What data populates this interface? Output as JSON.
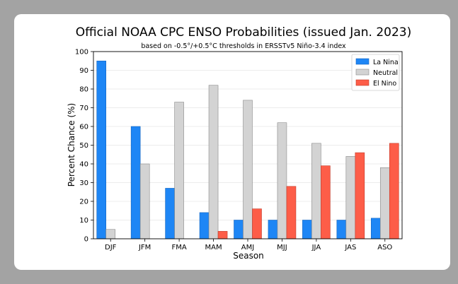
{
  "colors": {
    "background": "#a3a3a3",
    "card": "#ffffff",
    "la_nina": "#1e86f5",
    "neutral": "#d3d3d3",
    "el_nino": "#fd5d48",
    "bar_edge_la_nina": "#1565c0",
    "bar_edge_neutral": "#8a8a8a",
    "bar_edge_el_nino": "#c23a28"
  },
  "chart_data": {
    "type": "bar",
    "title": "Official NOAA CPC ENSO Probabilities (issued Jan. 2023)",
    "subtitle": "based on -0.5°/+0.5°C thresholds in ERSSTv5 Niño-3.4 index",
    "xlabel": "Season",
    "ylabel": "Percent Chance (%)",
    "ylim": [
      0,
      100
    ],
    "yticks": [
      0,
      10,
      20,
      30,
      40,
      50,
      60,
      70,
      80,
      90,
      100
    ],
    "grid": true,
    "legend_position": "top-right",
    "categories": [
      "DJF",
      "JFM",
      "FMA",
      "MAM",
      "AMJ",
      "MJJ",
      "JJA",
      "JAS",
      "ASO"
    ],
    "series": [
      {
        "name": "La Nina",
        "color_key": "la_nina",
        "values": [
          95,
          60,
          27,
          14,
          10,
          10,
          10,
          10,
          11
        ]
      },
      {
        "name": "Neutral",
        "color_key": "neutral",
        "values": [
          5,
          40,
          73,
          82,
          74,
          62,
          51,
          44,
          38
        ]
      },
      {
        "name": "El Nino",
        "color_key": "el_nino",
        "values": [
          0,
          0,
          0,
          4,
          16,
          28,
          39,
          46,
          51
        ]
      }
    ]
  }
}
